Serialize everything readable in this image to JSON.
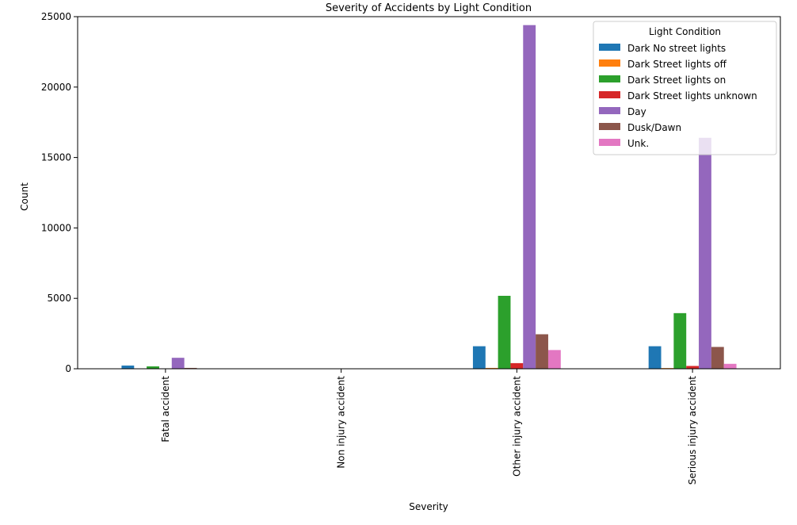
{
  "chart_data": {
    "type": "bar",
    "title": "Severity of Accidents by Light Condition",
    "xlabel": "Severity",
    "ylabel": "Count",
    "categories": [
      "Fatal accident",
      "Non injury accident",
      "Other injury accident",
      "Serious injury accident"
    ],
    "ylim": [
      0,
      25000
    ],
    "yticks": [
      0,
      5000,
      10000,
      15000,
      20000,
      25000
    ],
    "ytick_labels": [
      "0",
      "5000",
      "10000",
      "15000",
      "20000",
      "25000"
    ],
    "grid": false,
    "legend": {
      "title": "Light Condition",
      "position": "top-right"
    },
    "series": [
      {
        "name": "Dark No street lights",
        "color": "#1f77b4",
        "values": [
          230,
          0,
          1600,
          1600
        ]
      },
      {
        "name": "Dark Street lights off",
        "color": "#ff7f0e",
        "values": [
          10,
          0,
          60,
          50
        ]
      },
      {
        "name": "Dark Street lights on",
        "color": "#2ca02c",
        "values": [
          170,
          0,
          5180,
          3950
        ]
      },
      {
        "name": "Dark Street lights unknown",
        "color": "#d62728",
        "values": [
          15,
          0,
          400,
          200
        ]
      },
      {
        "name": "Day",
        "color": "#9467bd",
        "values": [
          780,
          0,
          24400,
          16400
        ]
      },
      {
        "name": "Dusk/Dawn",
        "color": "#8c564b",
        "values": [
          60,
          0,
          2450,
          1550
        ]
      },
      {
        "name": "Unk.",
        "color": "#e377c2",
        "values": [
          10,
          0,
          1330,
          350
        ]
      }
    ]
  }
}
